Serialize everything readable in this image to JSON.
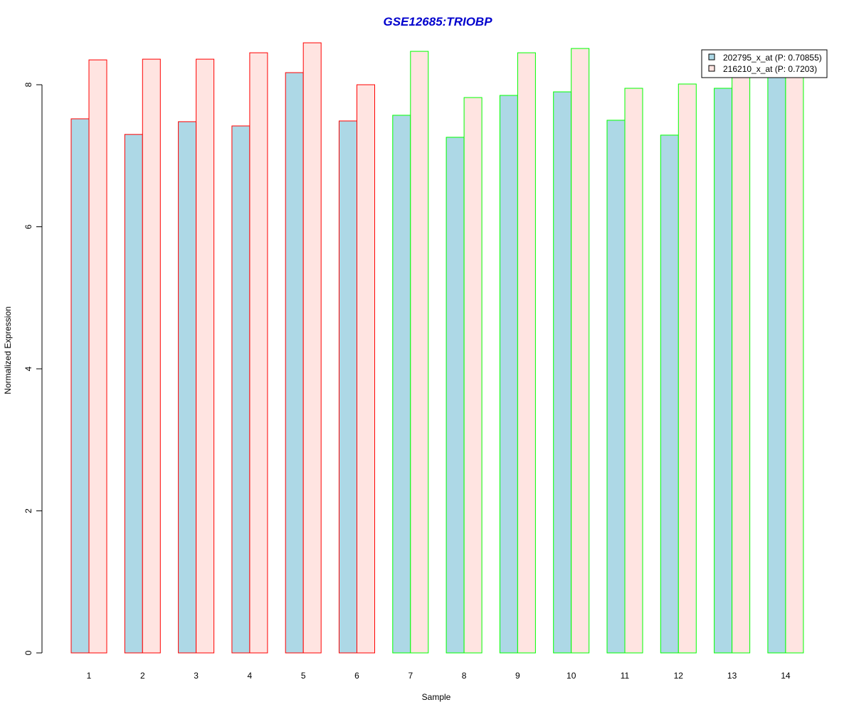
{
  "chart_data": {
    "type": "bar",
    "title": "GSE12685:TRIOBP",
    "xlabel": "Sample",
    "ylabel": "Normalized Expression",
    "categories": [
      "1",
      "2",
      "3",
      "4",
      "5",
      "6",
      "7",
      "8",
      "9",
      "10",
      "11",
      "12",
      "13",
      "14"
    ],
    "series": [
      {
        "name": "202795_x_at (P: 0.70855)",
        "fill": "#add8e6",
        "values": [
          7.52,
          7.3,
          7.48,
          7.42,
          8.17,
          7.49,
          7.57,
          7.26,
          7.85,
          7.9,
          7.5,
          7.29,
          7.95,
          8.12
        ]
      },
      {
        "name": "216210_x_at (P: 0.7203)",
        "fill": "#ffe4e1",
        "values": [
          8.35,
          8.36,
          8.36,
          8.45,
          8.59,
          8.0,
          8.47,
          7.82,
          8.45,
          8.51,
          7.95,
          8.01,
          8.12,
          8.15
        ]
      }
    ],
    "group_border_colors": [
      "#ff0000",
      "#ff0000",
      "#ff0000",
      "#ff0000",
      "#ff0000",
      "#ff0000",
      "#00ff00",
      "#00ff00",
      "#00ff00",
      "#00ff00",
      "#00ff00",
      "#00ff00",
      "#00ff00",
      "#00ff00"
    ],
    "title_color": "#0000cd",
    "ylim": [
      0,
      8.6
    ],
    "yticks": [
      0,
      2,
      4,
      6,
      8
    ],
    "grid": false,
    "legend_position": "top-right"
  }
}
